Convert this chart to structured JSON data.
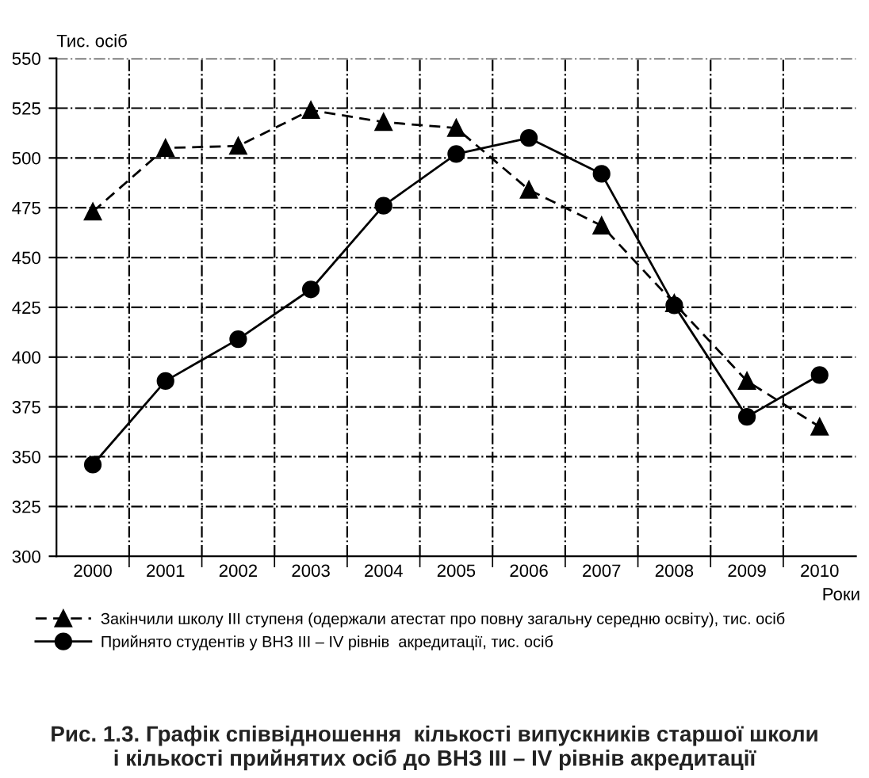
{
  "chart_data": {
    "type": "line",
    "title": "Рис. 1.3. Графік співвідношення  кількості випускників старшої школи\nі кількості прийнятих осіб до ВНЗ III – IV рівнів акредитації",
    "xlabel": "Роки",
    "ylabel": "Тис. осіб",
    "categories": [
      "2000",
      "2001",
      "2002",
      "2003",
      "2004",
      "2005",
      "2006",
      "2007",
      "2008",
      "2009",
      "2010"
    ],
    "series": [
      {
        "name": "Закінчили школу III ступеня (одержали атестат про повну загальну середню освіту), тис. осіб",
        "color": "#000000",
        "marker": "triangle",
        "line_style": "dashed",
        "values": [
          473,
          505,
          506,
          524,
          518,
          515,
          484,
          466,
          427,
          388,
          365
        ]
      },
      {
        "name": "Прийнято студентів у ВНЗ III – IV рівнів  акредитації, тис. осіб",
        "color": "#000000",
        "marker": "circle",
        "line_style": "solid",
        "values": [
          346,
          388,
          409,
          434,
          476,
          502,
          510,
          492,
          426,
          370,
          391
        ]
      }
    ],
    "ylim": [
      300,
      550
    ],
    "yticks": [
      300,
      325,
      350,
      375,
      400,
      425,
      450,
      475,
      500,
      525,
      550
    ],
    "grid": true,
    "legend": "bottom"
  }
}
